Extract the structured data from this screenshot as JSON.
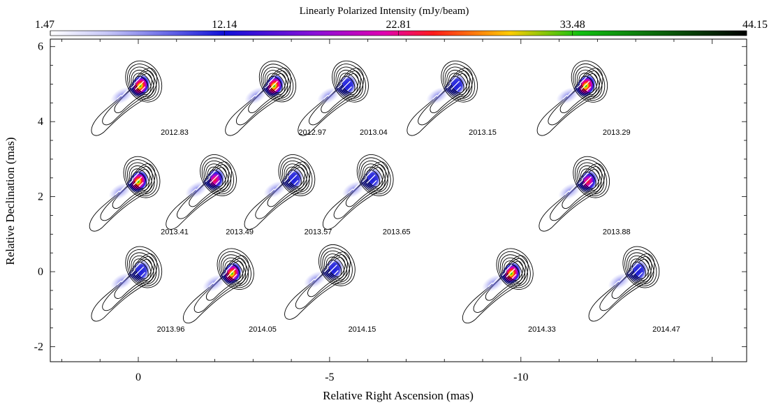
{
  "chart_data": {
    "type": "map",
    "xlabel": "Relative Right Ascension (mas)",
    "ylabel": "Relative Declination (mas)",
    "xlim": [
      2.3,
      -15.9
    ],
    "ylim": [
      -2.4,
      6.2
    ],
    "x_ticks": [
      0,
      -5,
      -10
    ],
    "x_tick_labels": [
      "0",
      "-5",
      "-10"
    ],
    "y_ticks": [
      6,
      4,
      2,
      0,
      -2
    ],
    "y_tick_labels": [
      "6",
      "4",
      "2",
      "0",
      "-2"
    ],
    "grid": false,
    "colorbar": {
      "title": "Linearly Polarized Intensity (mJy/beam)",
      "ticks": [
        1.47,
        12.14,
        22.81,
        33.48,
        44.15
      ],
      "tick_labels": [
        "1.47",
        "12.14",
        "22.81",
        "33.48",
        "44.15"
      ],
      "colormap": [
        "#ffffff",
        "#1010d8",
        "#cc00cc",
        "#ff1a1a",
        "#ffcc00",
        "#10c010",
        "#000000"
      ]
    },
    "epochs": [
      {
        "label": "2012.83",
        "core": [
          -0.05,
          4.95
        ],
        "label_pos": [
          -0.95,
          3.65
        ],
        "peak": 0.95,
        "angle": -30
      },
      {
        "label": "2012.97",
        "core": [
          -3.55,
          4.95
        ],
        "label_pos": [
          -4.55,
          3.65
        ],
        "peak": 0.88,
        "angle": -32
      },
      {
        "label": "2013.04",
        "core": [
          -5.45,
          4.95
        ],
        "label_pos": [
          -6.15,
          3.65
        ],
        "peak": 0.45,
        "angle": -30
      },
      {
        "label": "2013.15",
        "core": [
          -8.3,
          4.95
        ],
        "label_pos": [
          -9.0,
          3.65
        ],
        "peak": 0.48,
        "angle": -30
      },
      {
        "label": "2013.29",
        "core": [
          -11.7,
          4.95
        ],
        "label_pos": [
          -12.5,
          3.65
        ],
        "peak": 0.92,
        "angle": -28
      },
      {
        "label": "2013.41",
        "core": [
          0.0,
          2.4
        ],
        "label_pos": [
          -0.95,
          1.0
        ],
        "peak": 0.85,
        "angle": -30
      },
      {
        "label": "2013.49",
        "core": [
          -2.0,
          2.45
        ],
        "label_pos": [
          -2.65,
          1.0
        ],
        "peak": 0.7,
        "angle": -30
      },
      {
        "label": "2013.57",
        "core": [
          -4.05,
          2.45
        ],
        "label_pos": [
          -4.7,
          1.0
        ],
        "peak": 0.3,
        "angle": -30
      },
      {
        "label": "2013.65",
        "core": [
          -6.1,
          2.45
        ],
        "label_pos": [
          -6.75,
          1.0
        ],
        "peak": 0.3,
        "angle": -30
      },
      {
        "label": "2013.88",
        "core": [
          -11.75,
          2.4
        ],
        "label_pos": [
          -12.5,
          1.0
        ],
        "peak": 0.62,
        "angle": -30
      },
      {
        "label": "2013.96",
        "core": [
          -0.05,
          0.0
        ],
        "label_pos": [
          -0.85,
          -1.6
        ],
        "peak": 0.35,
        "angle": -30
      },
      {
        "label": "2014.05",
        "core": [
          -2.45,
          -0.05
        ],
        "label_pos": [
          -3.25,
          -1.6
        ],
        "peak": 0.95,
        "angle": -32
      },
      {
        "label": "2014.15",
        "core": [
          -5.1,
          0.05
        ],
        "label_pos": [
          -5.85,
          -1.6
        ],
        "peak": 0.25,
        "angle": -30
      },
      {
        "label": "2014.33",
        "core": [
          -9.75,
          -0.05
        ],
        "label_pos": [
          -10.55,
          -1.6
        ],
        "peak": 0.85,
        "angle": -32
      },
      {
        "label": "2014.47",
        "core": [
          -13.05,
          0.0
        ],
        "label_pos": [
          -13.8,
          -1.6
        ],
        "peak": 0.4,
        "angle": -30
      }
    ]
  }
}
